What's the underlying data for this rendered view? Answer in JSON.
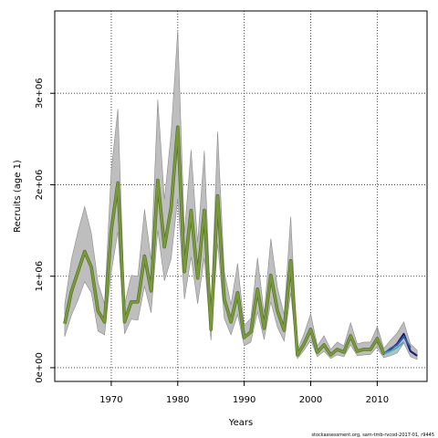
{
  "chart_data": {
    "type": "line",
    "title": "",
    "xlabel": "Years",
    "ylabel": "Recruits (age 1)",
    "xlim": [
      1961.5,
      2017.5
    ],
    "ylim": [
      -150000,
      3900000
    ],
    "xticks": [
      1970,
      1980,
      1990,
      2000,
      2010
    ],
    "yticks": [
      0,
      1000000,
      2000000,
      3000000
    ],
    "ytick_labels": [
      "0e+00",
      "1e+06",
      "2e+06",
      "3e+06"
    ],
    "grid": "dotted, at ticks",
    "colors": {
      "band": "#bebebe",
      "band_edge": "#8c8c8c",
      "estimate": "#7a9a3a",
      "estimate_dark": "#4f6e24",
      "tail_a": "#1a1a7a",
      "tail_b": "#2b5aa8",
      "tail_c": "#45b0b8"
    },
    "x": [
      1963,
      1964,
      1965,
      1966,
      1967,
      1968,
      1969,
      1970,
      1971,
      1972,
      1973,
      1974,
      1975,
      1976,
      1977,
      1978,
      1979,
      1980,
      1981,
      1982,
      1983,
      1984,
      1985,
      1986,
      1987,
      1988,
      1989,
      1990,
      1991,
      1992,
      1993,
      1994,
      1995,
      1996,
      1997,
      1998,
      1999,
      2000,
      2001,
      2002,
      2003,
      2004,
      2005,
      2006,
      2007,
      2008,
      2009,
      2010,
      2011
    ],
    "series": [
      {
        "values": [
          480000,
          830000,
          1050000,
          1270000,
          1100000,
          620000,
          500000,
          1500000,
          2020000,
          500000,
          720000,
          720000,
          1220000,
          840000,
          2050000,
          1320000,
          1750000,
          2630000,
          1050000,
          1720000,
          980000,
          1720000,
          420000,
          1880000,
          750000,
          500000,
          820000,
          330000,
          390000,
          860000,
          430000,
          1010000,
          620000,
          410000,
          1170000,
          140000,
          260000,
          420000,
          170000,
          250000,
          140000,
          200000,
          170000,
          350000,
          180000,
          200000,
          200000,
          320000,
          150000
        ],
        "lower": [
          340000,
          570000,
          740000,
          940000,
          820000,
          400000,
          360000,
          1040000,
          1490000,
          370000,
          530000,
          520000,
          890000,
          600000,
          1500000,
          950000,
          1190000,
          1850000,
          750000,
          1210000,
          700000,
          1200000,
          300000,
          1360000,
          540000,
          360000,
          580000,
          240000,
          280000,
          610000,
          310000,
          720000,
          440000,
          290000,
          820000,
          100000,
          190000,
          300000,
          120000,
          180000,
          100000,
          140000,
          120000,
          250000,
          130000,
          140000,
          145000,
          230000,
          110000
        ],
        "upper": [
          690000,
          1180000,
          1490000,
          1760000,
          1470000,
          930000,
          700000,
          2150000,
          2830000,
          690000,
          1010000,
          1000000,
          1730000,
          1180000,
          2930000,
          1840000,
          2560000,
          3690000,
          1470000,
          2380000,
          1370000,
          2370000,
          590000,
          2580000,
          1050000,
          690000,
          1140000,
          460000,
          540000,
          1200000,
          600000,
          1410000,
          870000,
          580000,
          1650000,
          190000,
          370000,
          590000,
          240000,
          350000,
          200000,
          280000,
          240000,
          490000,
          260000,
          280000,
          280000,
          450000,
          210000
        ]
      }
    ],
    "tail_series": [
      {
        "name_key": "a",
        "x": [
          2010,
          2011,
          2012,
          2013,
          2014,
          2015,
          2016
        ],
        "values": [
          300000,
          150000,
          200000,
          260000,
          370000,
          180000,
          130000
        ],
        "lower": [
          210000,
          110000,
          130000,
          160000,
          270000,
          120000,
          90000
        ],
        "upper": [
          440000,
          210000,
          300000,
          380000,
          500000,
          260000,
          190000
        ]
      },
      {
        "name_key": "b",
        "x": [
          2011,
          2012,
          2013,
          2014,
          2015
        ],
        "values": [
          150000,
          210000,
          250000,
          340000,
          220000
        ]
      },
      {
        "name_key": "c",
        "x": [
          2011,
          2012,
          2013,
          2014
        ],
        "values": [
          150000,
          180000,
          220000,
          280000
        ]
      }
    ]
  },
  "footer": {
    "credit": "stockassessment.org, sam-tmb-rvcod-2017-01, r9445"
  }
}
